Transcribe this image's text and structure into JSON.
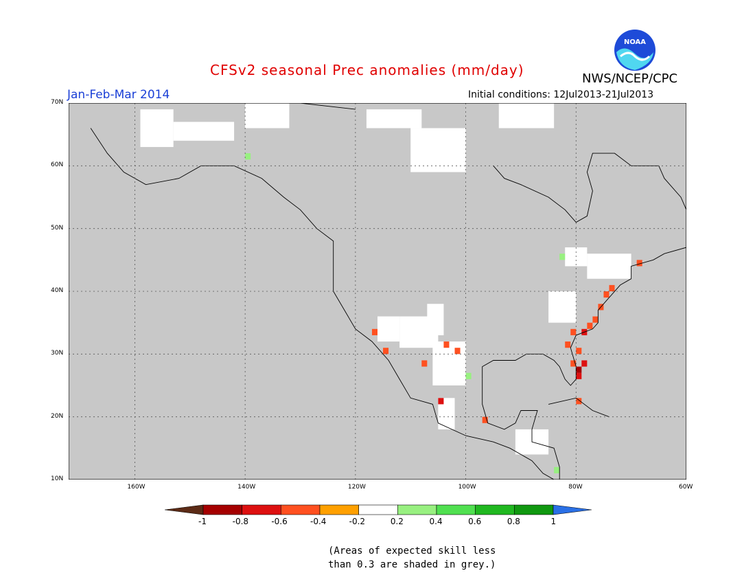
{
  "title": "CFSv2 seasonal Prec anomalies (mm/day)",
  "agency": "NWS/NCEP/CPC",
  "logo_text": "NOAA",
  "period": "Jan-Feb-Mar 2014",
  "initial_conditions": "Initial conditions: 12Jul2013-21Jul2013",
  "map": {
    "lon_range": [
      -172,
      -60
    ],
    "lat_range": [
      10,
      70
    ],
    "lon_ticks": [
      {
        "value": -160,
        "label": "160W"
      },
      {
        "value": -140,
        "label": "140W"
      },
      {
        "value": -120,
        "label": "120W"
      },
      {
        "value": -100,
        "label": "100W"
      },
      {
        "value": -80,
        "label": "80W"
      },
      {
        "value": -60,
        "label": "60W"
      }
    ],
    "lat_ticks": [
      {
        "value": 10,
        "label": "10N"
      },
      {
        "value": 20,
        "label": "20N"
      },
      {
        "value": 30,
        "label": "30N"
      },
      {
        "value": 40,
        "label": "40N"
      },
      {
        "value": 50,
        "label": "50N"
      },
      {
        "value": 60,
        "label": "60N"
      },
      {
        "value": 70,
        "label": "70N"
      }
    ],
    "grid": true,
    "grey_color": "#c8c8c8",
    "white_regions": [
      [
        -159,
        69,
        -153,
        63
      ],
      [
        -153,
        67,
        -142,
        64
      ],
      [
        -140,
        70,
        -132,
        66
      ],
      [
        -110,
        66,
        -100,
        59
      ],
      [
        -94,
        70,
        -84,
        66
      ],
      [
        -118,
        69,
        -108,
        66
      ],
      [
        -116,
        36,
        -112,
        32
      ],
      [
        -112,
        36,
        -105,
        31
      ],
      [
        -106,
        32,
        -100,
        25
      ],
      [
        -105,
        23,
        -102,
        18
      ],
      [
        -91,
        18,
        -85,
        14
      ],
      [
        -82,
        47,
        -78,
        44
      ],
      [
        -78,
        46,
        -70,
        42
      ],
      [
        -85,
        40,
        -80,
        35
      ],
      [
        -107,
        38,
        -104,
        33
      ]
    ],
    "anomaly_cells": [
      {
        "lon": -79,
        "lat": 28,
        "value": -0.7
      },
      {
        "lon": -80,
        "lat": 27,
        "value": -0.8
      },
      {
        "lon": -80,
        "lat": 26,
        "value": -0.7
      },
      {
        "lon": -81,
        "lat": 28,
        "value": -0.5
      },
      {
        "lon": -80,
        "lat": 30,
        "value": -0.4
      },
      {
        "lon": -79,
        "lat": 33,
        "value": -0.6
      },
      {
        "lon": -78,
        "lat": 34,
        "value": -0.5
      },
      {
        "lon": -77,
        "lat": 35,
        "value": -0.4
      },
      {
        "lon": -76,
        "lat": 37,
        "value": -0.4
      },
      {
        "lon": -75,
        "lat": 39,
        "value": -0.4
      },
      {
        "lon": -74,
        "lat": 40,
        "value": -0.4
      },
      {
        "lon": -81,
        "lat": 33,
        "value": -0.4
      },
      {
        "lon": -82,
        "lat": 31,
        "value": -0.4
      },
      {
        "lon": -117,
        "lat": 33,
        "value": -0.4
      },
      {
        "lon": -115,
        "lat": 30,
        "value": -0.4
      },
      {
        "lon": -105,
        "lat": 22,
        "value": -0.6
      },
      {
        "lon": -104,
        "lat": 31,
        "value": -0.4
      },
      {
        "lon": -102,
        "lat": 30,
        "value": -0.4
      },
      {
        "lon": -108,
        "lat": 28,
        "value": -0.4
      },
      {
        "lon": -97,
        "lat": 19,
        "value": -0.4
      },
      {
        "lon": -69,
        "lat": 44,
        "value": -0.4
      },
      {
        "lon": -80,
        "lat": 22,
        "value": -0.4
      },
      {
        "lon": -140,
        "lat": 61,
        "value": 0.3
      },
      {
        "lon": -83,
        "lat": 45,
        "value": 0.3
      },
      {
        "lon": -100,
        "lat": 26,
        "value": 0.3
      },
      {
        "lon": -84,
        "lat": 11,
        "value": 0.3
      }
    ]
  },
  "colorbar": {
    "bins": [
      {
        "color": "#5c2b16"
      },
      {
        "color": "#a50000"
      },
      {
        "color": "#dd1010"
      },
      {
        "color": "#ff5020"
      },
      {
        "color": "#ffa000"
      },
      {
        "color": "#ffffff"
      },
      {
        "color": "#98f080"
      },
      {
        "color": "#50e050"
      },
      {
        "color": "#20b820"
      },
      {
        "color": "#109810"
      },
      {
        "color": "#2a70e6"
      }
    ],
    "labels": [
      "-1",
      "-0.8",
      "-0.6",
      "-0.4",
      "-0.2",
      "0.2",
      "0.4",
      "0.6",
      "0.8",
      "1"
    ]
  },
  "note_line1": "(Areas of expected skill less",
  "note_line2": "than 0.3 are shaded in grey.)"
}
